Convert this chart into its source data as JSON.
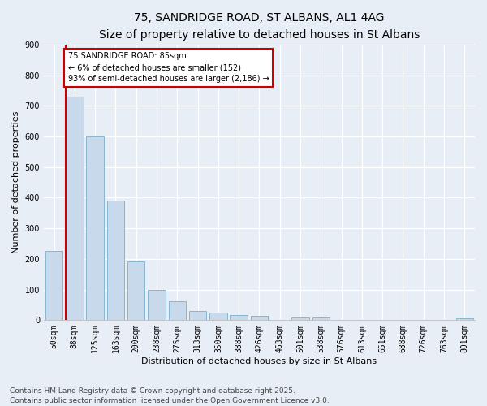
{
  "title_line1": "75, SANDRIDGE ROAD, ST ALBANS, AL1 4AG",
  "title_line2": "Size of property relative to detached houses in St Albans",
  "xlabel": "Distribution of detached houses by size in St Albans",
  "ylabel": "Number of detached properties",
  "categories": [
    "50sqm",
    "88sqm",
    "125sqm",
    "163sqm",
    "200sqm",
    "238sqm",
    "275sqm",
    "313sqm",
    "350sqm",
    "388sqm",
    "426sqm",
    "463sqm",
    "501sqm",
    "538sqm",
    "576sqm",
    "613sqm",
    "651sqm",
    "688sqm",
    "726sqm",
    "763sqm",
    "801sqm"
  ],
  "values": [
    225,
    730,
    600,
    390,
    192,
    100,
    62,
    30,
    25,
    18,
    15,
    2,
    10,
    10,
    2,
    0,
    0,
    0,
    0,
    0,
    5
  ],
  "bar_color": "#c8d9ec",
  "bar_edge_color": "#7aaecc",
  "vline_color": "#cc0000",
  "annotation_text": "75 SANDRIDGE ROAD: 85sqm\n← 6% of detached houses are smaller (152)\n93% of semi-detached houses are larger (2,186) →",
  "annotation_box_color": "#ffffff",
  "annotation_box_edge": "#cc0000",
  "ylim": [
    0,
    900
  ],
  "yticks": [
    0,
    100,
    200,
    300,
    400,
    500,
    600,
    700,
    800,
    900
  ],
  "footer_line1": "Contains HM Land Registry data © Crown copyright and database right 2025.",
  "footer_line2": "Contains public sector information licensed under the Open Government Licence v3.0.",
  "background_color": "#e8eef5",
  "grid_color": "#ffffff",
  "title_fontsize": 10,
  "subtitle_fontsize": 9,
  "axis_label_fontsize": 8,
  "tick_fontsize": 7,
  "annotation_fontsize": 7,
  "footer_fontsize": 6.5
}
